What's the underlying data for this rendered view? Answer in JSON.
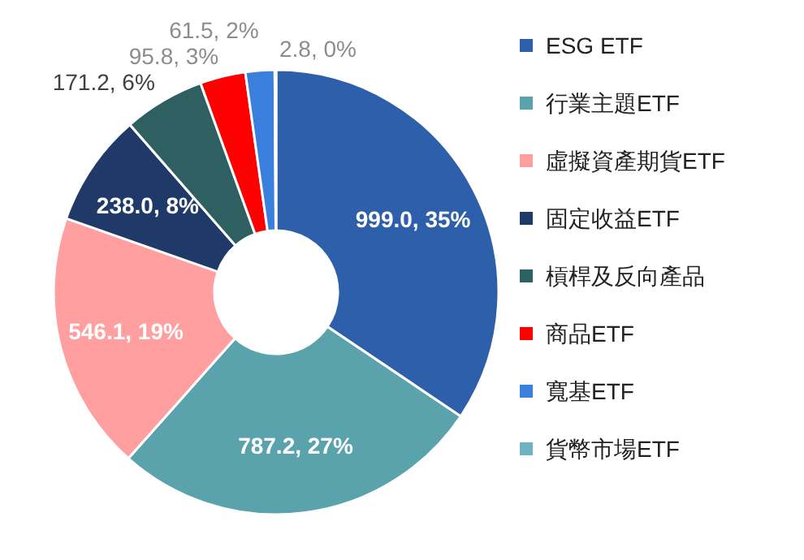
{
  "chart_data": {
    "type": "donut",
    "categories": [
      "ESG ETF",
      "行業主題ETF",
      "虛擬資產期貨ETF",
      "固定收益ETF",
      "槓桿及反向產品",
      "商品ETF",
      "寬基ETF",
      "貨幣市場ETF"
    ],
    "values": [
      999.0,
      787.2,
      546.1,
      238.0,
      171.2,
      95.8,
      61.5,
      2.8
    ],
    "value_labels": [
      "999.0, 35%",
      "787.2, 27%",
      "546.1, 19%",
      "238.0, 8%",
      "171.2, 6%",
      "95.8, 3%",
      "61.5, 2%",
      "2.8, 0%"
    ],
    "colors": [
      "#2e5faa",
      "#5aa3ad",
      "#ff9f9f",
      "#1f3a68",
      "#2f6061",
      "#ff0000",
      "#3b7fdc",
      "#6fb2c1"
    ],
    "legend": "right"
  }
}
